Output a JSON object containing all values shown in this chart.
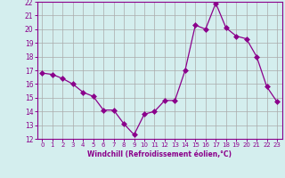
{
  "x": [
    0,
    1,
    2,
    3,
    4,
    5,
    6,
    7,
    8,
    9,
    10,
    11,
    12,
    13,
    14,
    15,
    16,
    17,
    18,
    19,
    20,
    21,
    22,
    23
  ],
  "y": [
    16.8,
    16.7,
    16.4,
    16.0,
    15.4,
    15.1,
    14.1,
    14.1,
    13.1,
    12.3,
    13.8,
    14.0,
    14.8,
    14.8,
    17.0,
    20.3,
    20.0,
    21.9,
    20.1,
    19.5,
    19.3,
    18.0,
    15.8,
    14.7
  ],
  "xlabel": "Windchill (Refroidissement éolien,°C)",
  "xlim_min": -0.5,
  "xlim_max": 23.5,
  "ylim_min": 12,
  "ylim_max": 22,
  "yticks": [
    12,
    13,
    14,
    15,
    16,
    17,
    18,
    19,
    20,
    21,
    22
  ],
  "xticks": [
    0,
    1,
    2,
    3,
    4,
    5,
    6,
    7,
    8,
    9,
    10,
    11,
    12,
    13,
    14,
    15,
    16,
    17,
    18,
    19,
    20,
    21,
    22,
    23
  ],
  "line_color": "#8B008B",
  "marker_size": 3,
  "bg_color": "#d4eeee",
  "grid_color": "#aaaaaa"
}
